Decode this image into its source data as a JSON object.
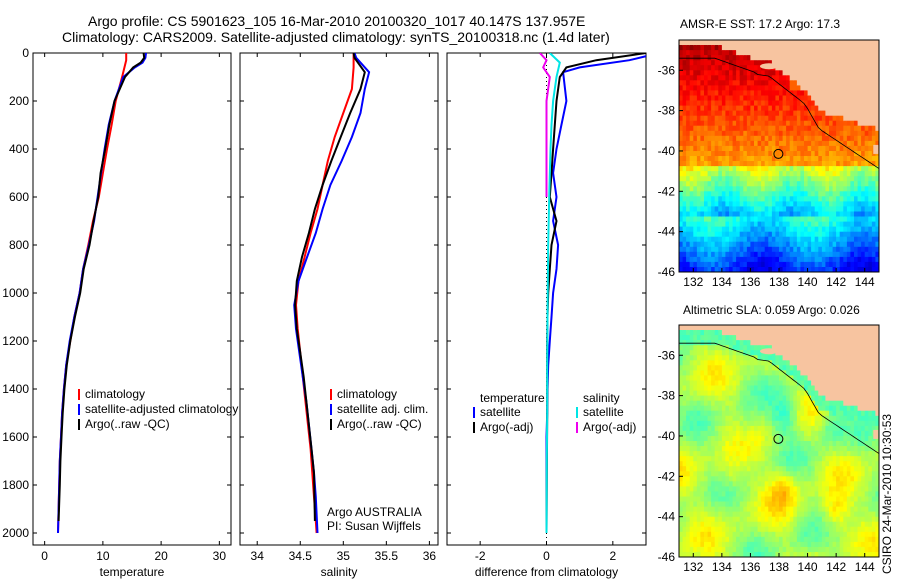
{
  "title": {
    "line1": "Argo profile: CS 5901623_105 16-Mar-2010 20100320_1017 40.147S 137.957E",
    "line2": "Climatology: CARS2009. Satellite-adjusted climatology: synTS_20100318.nc (1.4d later)"
  },
  "credit": "CSIRO 24-Mar-2010 10:30:53",
  "chart_data": [
    {
      "id": "temperature",
      "type": "line",
      "xlabel": "temperature",
      "ylabel": "",
      "xlim": [
        -2,
        32
      ],
      "ylim": [
        2050,
        0
      ],
      "xticks": [
        0,
        10,
        20,
        30
      ],
      "yticks": [
        0,
        200,
        400,
        600,
        800,
        1000,
        1200,
        1400,
        1600,
        1800,
        2000
      ],
      "legend": [
        "climatology",
        "satellite-adjusted climatology",
        "Argo(..raw -QC)"
      ],
      "legend_position": "bottom-right",
      "series": [
        {
          "name": "climatology",
          "color": "#ff0000",
          "x": [
            14.0,
            14.0,
            13.3,
            12.2,
            11.5,
            10.7,
            10.0,
            9.3,
            8.3,
            7.5,
            6.6,
            6.0,
            5.1,
            4.4,
            3.7,
            3.3,
            3.0,
            2.8,
            2.6,
            2.5,
            2.4,
            2.3
          ],
          "y": [
            0,
            30,
            100,
            200,
            300,
            400,
            500,
            600,
            700,
            800,
            900,
            1000,
            1100,
            1200,
            1300,
            1400,
            1500,
            1600,
            1700,
            1800,
            1900,
            2000
          ]
        },
        {
          "name": "satellite-adjusted climatology",
          "color": "#0000ff",
          "x": [
            17.4,
            17.3,
            16.8,
            15.5,
            13.5,
            12.0,
            11.0,
            10.3,
            9.7,
            9.1,
            8.5,
            7.6,
            6.6,
            6.0,
            5.1,
            4.3,
            3.7,
            3.3,
            3.0,
            2.8,
            2.6,
            2.5,
            2.4,
            2.3
          ],
          "y": [
            0,
            20,
            40,
            60,
            100,
            200,
            300,
            400,
            500,
            600,
            700,
            800,
            900,
            1000,
            1100,
            1200,
            1300,
            1400,
            1500,
            1600,
            1700,
            1800,
            1900,
            2000
          ]
        },
        {
          "name": "Argo(..raw -QC)",
          "color": "#000000",
          "x": [
            17.0,
            17.1,
            16.5,
            15.2,
            13.8,
            12.0,
            11.1,
            10.4,
            9.6,
            9.2,
            8.4,
            7.7,
            6.7,
            6.1,
            5.2,
            4.4,
            3.8,
            3.4,
            3.1,
            2.9,
            2.7,
            2.6,
            2.4
          ],
          "y": [
            0,
            20,
            40,
            60,
            100,
            200,
            300,
            400,
            500,
            600,
            700,
            800,
            900,
            1000,
            1100,
            1200,
            1300,
            1400,
            1500,
            1600,
            1700,
            1800,
            1950
          ]
        }
      ]
    },
    {
      "id": "salinity",
      "type": "line",
      "xlabel": "salinity",
      "ylabel": "",
      "xlim": [
        33.8,
        36.1
      ],
      "ylim": [
        2050,
        0
      ],
      "xticks": [
        34,
        34.5,
        35,
        35.5,
        36
      ],
      "legend": [
        "climatology",
        "satellite adj. clim.",
        "Argo(..raw -QC)"
      ],
      "legend_position": "bottom-right",
      "annotation": [
        "Argo AUSTRALIA",
        "PI: Susan Wijffels"
      ],
      "series": [
        {
          "name": "climatology",
          "color": "#ff0000",
          "x": [
            35.12,
            35.12,
            35.1,
            35.0,
            34.9,
            34.82,
            34.76,
            34.7,
            34.62,
            34.55,
            34.48,
            34.45,
            34.47,
            34.5,
            34.53,
            34.56,
            34.59,
            34.62,
            34.64,
            34.66,
            34.68,
            34.69
          ],
          "y": [
            0,
            60,
            150,
            250,
            350,
            450,
            550,
            650,
            750,
            850,
            950,
            1050,
            1150,
            1250,
            1350,
            1450,
            1550,
            1650,
            1750,
            1850,
            1950,
            2000
          ]
        },
        {
          "name": "satellite adj. clim.",
          "color": "#0000ff",
          "x": [
            35.13,
            35.15,
            35.3,
            35.25,
            35.2,
            35.1,
            34.98,
            34.85,
            34.76,
            34.68,
            34.58,
            34.48,
            34.43,
            34.45,
            34.49,
            34.53,
            34.57,
            34.6,
            34.63,
            34.66,
            34.68,
            34.7
          ],
          "y": [
            0,
            20,
            80,
            150,
            250,
            350,
            450,
            550,
            650,
            750,
            850,
            950,
            1050,
            1150,
            1250,
            1350,
            1450,
            1550,
            1650,
            1750,
            1850,
            2000
          ]
        },
        {
          "name": "Argo(..raw -QC)",
          "color": "#000000",
          "x": [
            35.12,
            35.13,
            35.25,
            35.2,
            35.08,
            34.97,
            34.86,
            34.76,
            34.67,
            34.6,
            34.52,
            34.46,
            34.44,
            34.46,
            34.5,
            34.54,
            34.57,
            34.6,
            34.63,
            34.66,
            34.67
          ],
          "y": [
            0,
            20,
            80,
            150,
            250,
            350,
            450,
            550,
            650,
            750,
            850,
            950,
            1050,
            1150,
            1250,
            1350,
            1450,
            1550,
            1650,
            1750,
            1950
          ]
        }
      ]
    },
    {
      "id": "difference",
      "type": "line",
      "xlabel": "difference from climatology",
      "ylabel": "",
      "xlim": [
        -3,
        3
      ],
      "ylim": [
        2050,
        0
      ],
      "xticks": [
        -2,
        0,
        2
      ],
      "legend_groups": [
        {
          "heading": "temperature",
          "entries": [
            "satellite",
            "Argo(-adj)"
          ]
        },
        {
          "heading": "salinity",
          "entries": [
            "satellite",
            "Argo(-adj)"
          ]
        }
      ],
      "legend_position": "bottom",
      "series": [
        {
          "name": "satellite",
          "variable": "temperature",
          "color": "#0000ff",
          "x": [
            3.4,
            2.5,
            1.0,
            0.5,
            0.6,
            0.45,
            0.3,
            0.2,
            0.3,
            0.2,
            0.35,
            0.3,
            0.2,
            0.15,
            0.1,
            0.05,
            0.03,
            0.02,
            0.0,
            0.0,
            0.0
          ],
          "y": [
            0,
            30,
            60,
            80,
            200,
            300,
            400,
            500,
            600,
            700,
            800,
            900,
            1000,
            1100,
            1200,
            1300,
            1400,
            1500,
            1600,
            1800,
            2000
          ]
        },
        {
          "name": "Argo(-adj)",
          "variable": "temperature",
          "color": "#000000",
          "x": [
            3.0,
            1.5,
            0.6,
            0.4,
            0.3,
            0.25,
            0.2,
            0.15,
            0.1,
            0.3,
            0.15,
            0.1,
            0.05,
            0.03,
            0.02,
            0.02,
            0.0
          ],
          "y": [
            0,
            30,
            60,
            100,
            200,
            300,
            400,
            500,
            600,
            700,
            800,
            900,
            1000,
            1100,
            1200,
            1500,
            2000
          ]
        },
        {
          "name": "satellite",
          "variable": "salinity",
          "color": "#00e5e5",
          "x": [
            0.1,
            0.4,
            0.3,
            0.2,
            0.15,
            0.12,
            0.08,
            0.05,
            0.04,
            0.03,
            0.02,
            0.02,
            0.01,
            0.0
          ],
          "y": [
            0,
            40,
            100,
            200,
            300,
            400,
            600,
            800,
            950,
            1100,
            1300,
            1500,
            1700,
            2000
          ]
        },
        {
          "name": "Argo(-adj)",
          "variable": "salinity",
          "color": "#ee00ee",
          "x": [
            -0.2,
            0.0,
            -0.1,
            0.1,
            0.0,
            0.0,
            0.0
          ],
          "y": [
            0,
            30,
            60,
            100,
            200,
            400,
            600
          ]
        }
      ]
    },
    {
      "id": "sst-map",
      "type": "heatmap",
      "title": "AMSR-E SST: 17.2 Argo: 17.3",
      "xlim": [
        131,
        145
      ],
      "ylim": [
        -46,
        -34.5
      ],
      "xticks": [
        132,
        134,
        136,
        138,
        140,
        142,
        144
      ],
      "yticks": [
        -36,
        -38,
        -40,
        -42,
        -44,
        -46
      ],
      "marker": {
        "lon": 137.957,
        "lat": -40.147
      }
    },
    {
      "id": "sla-map",
      "type": "heatmap",
      "title": "Altimetric SLA: 0.059 Argo: 0.026",
      "xlim": [
        131,
        145
      ],
      "ylim": [
        -46,
        -34.5
      ],
      "xticks": [
        132,
        134,
        136,
        138,
        140,
        142,
        144
      ],
      "yticks": [
        -36,
        -38,
        -40,
        -42,
        -44,
        -46
      ],
      "marker": {
        "lon": 137.957,
        "lat": -40.147
      }
    }
  ]
}
